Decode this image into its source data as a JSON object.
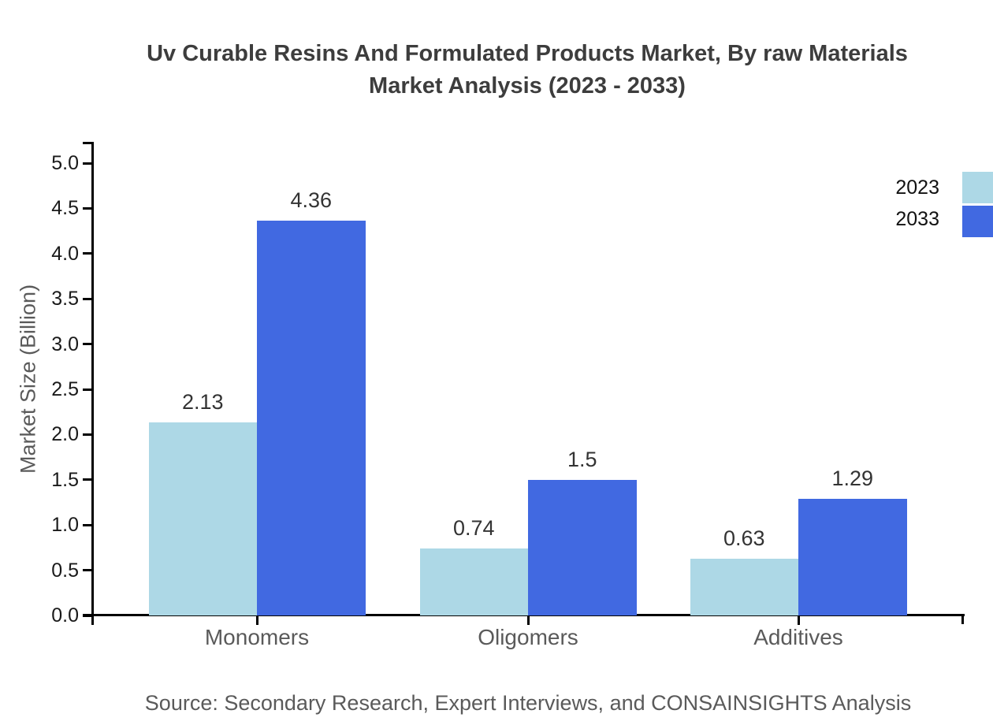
{
  "title": {
    "line1": "Uv Curable Resins And Formulated Products Market, By raw Materials",
    "line2": "Market Analysis (2023 - 2033)"
  },
  "source_text": "Source: Secondary Research, Expert Interviews, and CONSAINSIGHTS Analysis",
  "chart_data": {
    "type": "bar",
    "title": "Uv Curable Resins And Formulated Products Market, By raw Materials Market Analysis (2023 - 2033)",
    "categories": [
      "Monomers",
      "Oligomers",
      "Additives"
    ],
    "series": [
      {
        "name": "2023",
        "color": "#ADD8E6",
        "values": [
          2.13,
          0.74,
          0.63
        ],
        "labels": [
          "2.13",
          "0.74",
          "0.63"
        ]
      },
      {
        "name": "2033",
        "color": "#4169E1",
        "values": [
          4.36,
          1.5,
          1.29
        ],
        "labels": [
          "4.36",
          "1.5",
          "1.29"
        ]
      }
    ],
    "xlabel": "",
    "ylabel": "Market Size (Billion)",
    "ylim": [
      0,
      5
    ],
    "yticks": [
      "0.0",
      "0.5",
      "1.0",
      "1.5",
      "2.0",
      "2.5",
      "3.0",
      "3.5",
      "4.0",
      "4.5",
      "5.0"
    ],
    "grid": false,
    "legend_position": "top-right",
    "bar_value_labels": true
  },
  "colors": {
    "series_2023": "#ADD8E6",
    "series_2033": "#4169E1",
    "title_text": "#3d3d3d",
    "axis_text": "#1a1a1a",
    "muted_text": "#5a5a5a",
    "axis_line": "#000000"
  }
}
